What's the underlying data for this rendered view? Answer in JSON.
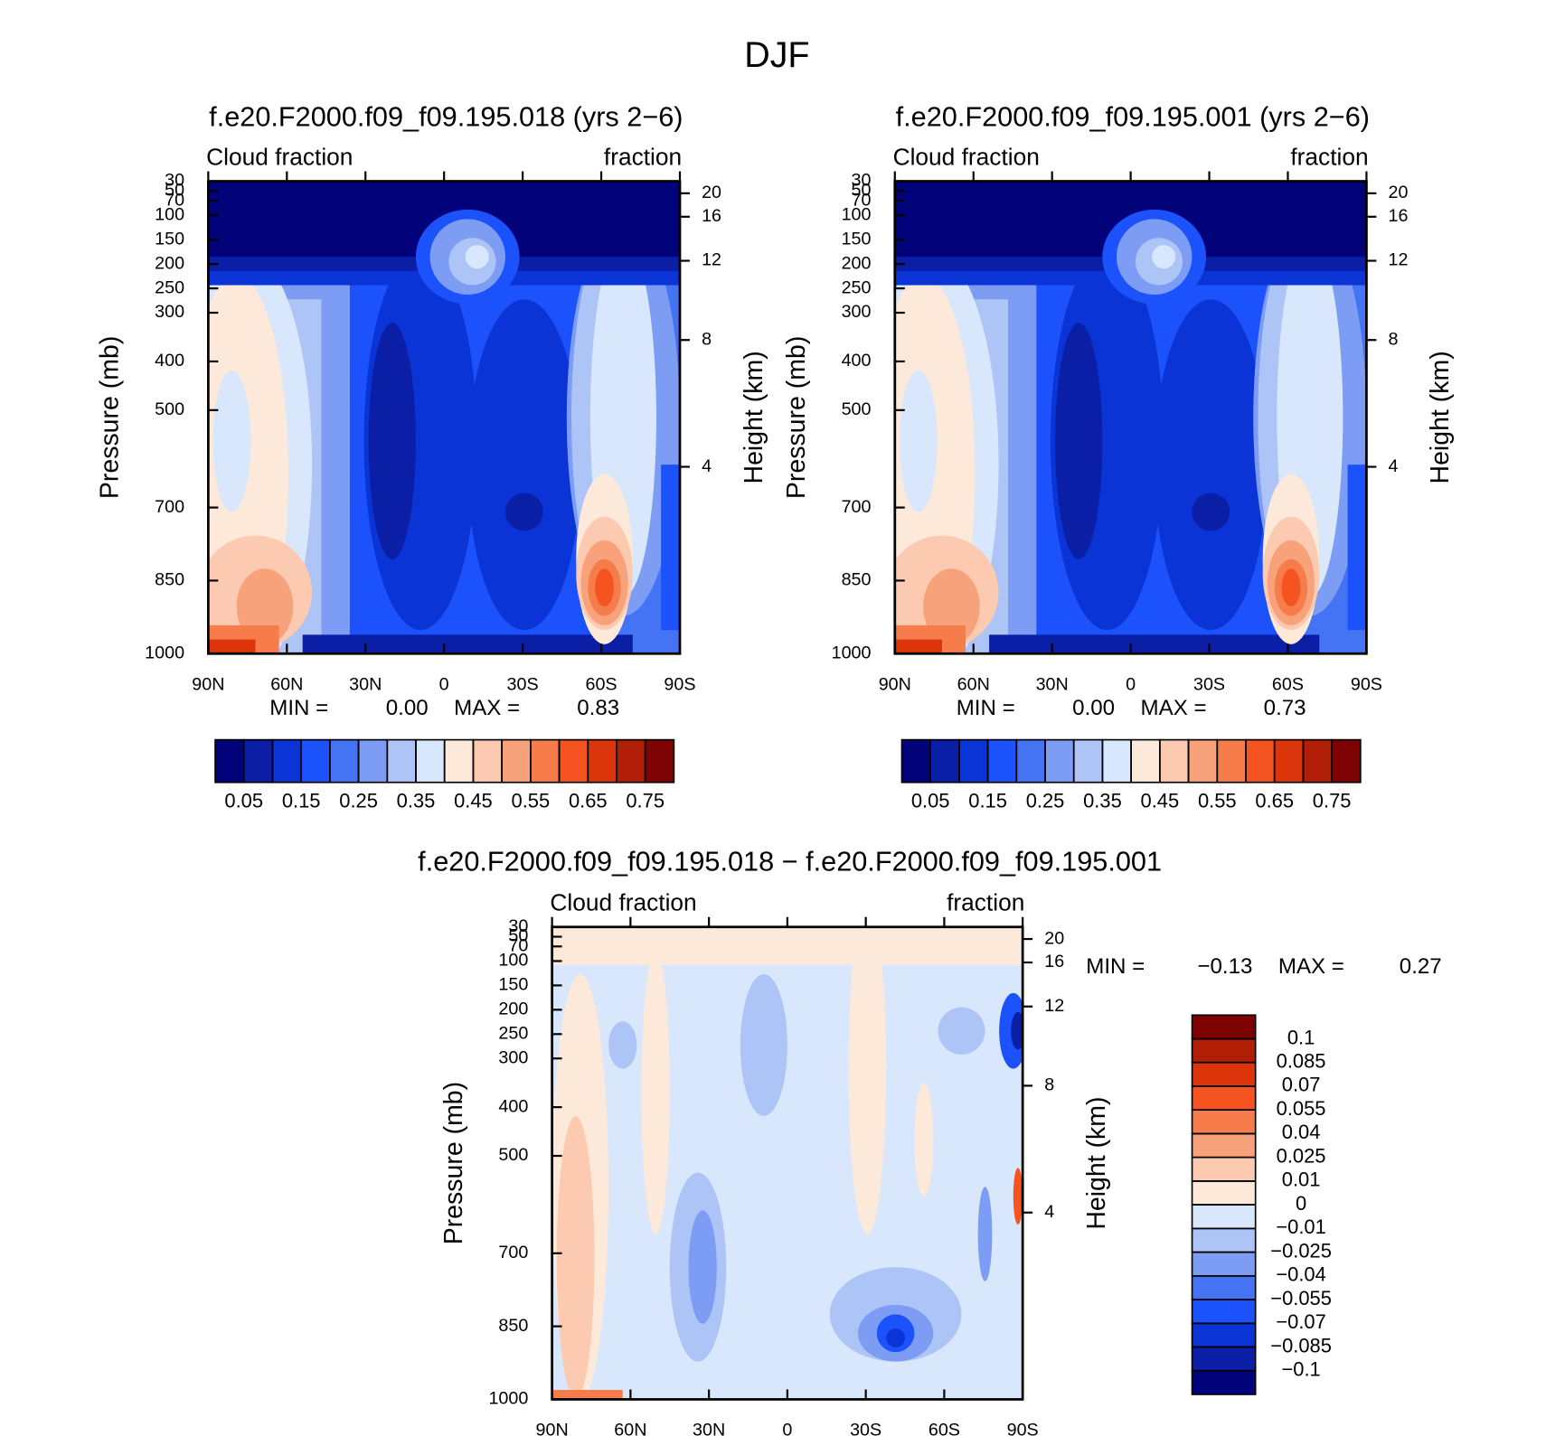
{
  "title": "DJF",
  "chart_data": [
    {
      "type": "contour",
      "title": "f.e20.F2000.f09_f09.195.018 (yrs 2−6)",
      "left_label": "Cloud fraction",
      "right_label": "fraction",
      "ylabel": "Pressure (mb)",
      "y2label": "Height (km)",
      "xlim": [
        90,
        -90
      ],
      "xticks": [
        {
          "value": 90,
          "label": "90N"
        },
        {
          "value": 60,
          "label": "60N"
        },
        {
          "value": 30,
          "label": "30N"
        },
        0,
        {
          "value": -30,
          "label": "30S"
        },
        {
          "value": -60,
          "label": "60S"
        },
        {
          "value": -90,
          "label": "90S"
        }
      ],
      "ylim": [
        1000,
        30
      ],
      "yticks": [
        30,
        50,
        70,
        100,
        150,
        200,
        250,
        300,
        400,
        500,
        700,
        850,
        1000
      ],
      "y2ticks": [
        4,
        8,
        12,
        16,
        20
      ],
      "min_text": "MIN =",
      "min": {
        "value": 0,
        "label": "0.00"
      },
      "max_text": "MAX =",
      "max": {
        "value": 0.83,
        "label": "0.83"
      },
      "colorbar": {
        "orientation": "horizontal",
        "levels": [
          0.05,
          0.1,
          0.15,
          0.2,
          0.25,
          0.3,
          0.35,
          0.4,
          0.45,
          0.5,
          0.55,
          0.6,
          0.65,
          0.7,
          0.75
        ],
        "colors": [
          "#02027a",
          "#0a1ea6",
          "#0a34d6",
          "#1c52fb",
          "#4474f4",
          "#7d9cf3",
          "#adc4f7",
          "#d8e7fb",
          "#fde9da",
          "#fbcab0",
          "#f8a27c",
          "#f77c4c",
          "#f5531f",
          "#dc350b",
          "#b01e05",
          "#7d0202"
        ]
      }
    },
    {
      "type": "contour",
      "title": "f.e20.F2000.f09_f09.195.001 (yrs 2−6)",
      "left_label": "Cloud fraction",
      "right_label": "fraction",
      "ylabel": "Pressure (mb)",
      "y2label": "Height (km)",
      "xlim": [
        90,
        -90
      ],
      "xticks": [
        {
          "value": 90,
          "label": "90N"
        },
        {
          "value": 60,
          "label": "60N"
        },
        {
          "value": 30,
          "label": "30N"
        },
        0,
        {
          "value": -30,
          "label": "30S"
        },
        {
          "value": -60,
          "label": "60S"
        },
        {
          "value": -90,
          "label": "90S"
        }
      ],
      "ylim": [
        1000,
        30
      ],
      "yticks": [
        30,
        50,
        70,
        100,
        150,
        200,
        250,
        300,
        400,
        500,
        700,
        850,
        1000
      ],
      "y2ticks": [
        4,
        8,
        12,
        16,
        20
      ],
      "min_text": "MIN =",
      "min": {
        "value": 0,
        "label": "0.00"
      },
      "max_text": "MAX =",
      "max": {
        "value": 0.73,
        "label": "0.73"
      },
      "colorbar": {
        "orientation": "horizontal",
        "levels": [
          0.05,
          0.1,
          0.15,
          0.2,
          0.25,
          0.3,
          0.35,
          0.4,
          0.45,
          0.5,
          0.55,
          0.6,
          0.65,
          0.7,
          0.75
        ],
        "colors": [
          "#02027a",
          "#0a1ea6",
          "#0a34d6",
          "#1c52fb",
          "#4474f4",
          "#7d9cf3",
          "#adc4f7",
          "#d8e7fb",
          "#fde9da",
          "#fbcab0",
          "#f8a27c",
          "#f77c4c",
          "#f5531f",
          "#dc350b",
          "#b01e05",
          "#7d0202"
        ]
      }
    },
    {
      "type": "contour",
      "title": "f.e20.F2000.f09_f09.195.018 − f.e20.F2000.f09_f09.195.001",
      "left_label": "Cloud fraction",
      "right_label": "fraction",
      "ylabel": "Pressure (mb)",
      "y2label": "Height (km)",
      "xlim": [
        90,
        -90
      ],
      "xticks": [
        {
          "value": 90,
          "label": "90N"
        },
        {
          "value": 60,
          "label": "60N"
        },
        {
          "value": 30,
          "label": "30N"
        },
        0,
        {
          "value": -30,
          "label": "30S"
        },
        {
          "value": -60,
          "label": "60S"
        },
        {
          "value": -90,
          "label": "90S"
        }
      ],
      "ylim": [
        1000,
        30
      ],
      "yticks": [
        30,
        50,
        70,
        100,
        150,
        200,
        250,
        300,
        400,
        500,
        700,
        850,
        1000
      ],
      "y2ticks": [
        4,
        8,
        12,
        16,
        20
      ],
      "min_text": "MIN =",
      "min": {
        "value": -0.13,
        "label": "−0.13"
      },
      "max_text": "MAX =",
      "max": {
        "value": 0.27,
        "label": "0.27"
      },
      "colorbar": {
        "orientation": "vertical",
        "levels": [
          {
            "value": -0.1,
            "label": "−0.1"
          },
          {
            "value": -0.085,
            "label": "−0.085"
          },
          {
            "value": -0.07,
            "label": "−0.07"
          },
          {
            "value": -0.055,
            "label": "−0.055"
          },
          {
            "value": -0.04,
            "label": "−0.04"
          },
          {
            "value": -0.025,
            "label": "−0.025"
          },
          {
            "value": -0.01,
            "label": "−0.01"
          },
          0,
          0.01,
          0.025,
          0.04,
          0.055,
          0.07,
          0.085,
          0.1
        ],
        "colors": [
          "#02027a",
          "#0a1ea6",
          "#0a34d6",
          "#1c52fb",
          "#4474f4",
          "#7d9cf3",
          "#adc4f7",
          "#d8e7fb",
          "#fde9da",
          "#fbcab0",
          "#f8a27c",
          "#f77c4c",
          "#f5531f",
          "#dc350b",
          "#b01e05",
          "#7d0202"
        ]
      }
    }
  ]
}
